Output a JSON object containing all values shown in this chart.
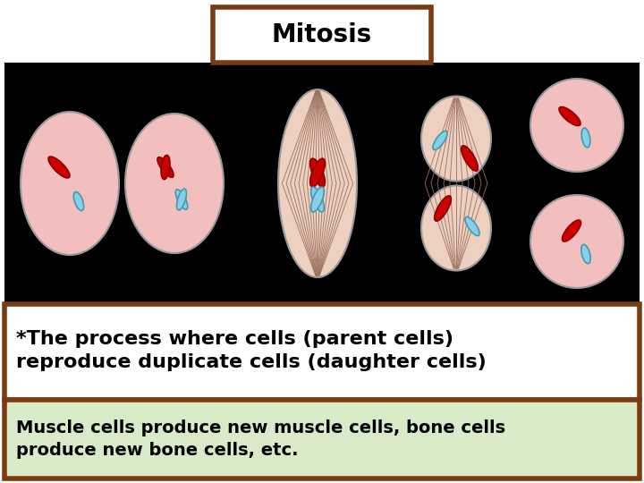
{
  "title": "Mitosis",
  "title_box_color": "#7B3A10",
  "title_bg": "#FFFFFF",
  "title_fontsize": 20,
  "bg_panel_color": "#000000",
  "cell_fill": "#F2BEBE",
  "red_chrom": "#CC0000",
  "blue_chrom": "#87CEEB",
  "text1": "*The process where cells (parent cells)\nreproduce duplicate cells (daughter cells)",
  "text2": "Muscle cells produce new muscle cells, bone cells\nproduce new bone cells, etc.",
  "text1_box_color": "#7B3A10",
  "text1_bg": "#FFFFFF",
  "text2_box_color": "#7B3A10",
  "text2_bg": "#D8EAC8",
  "text1_fontsize": 16,
  "text2_fontsize": 14,
  "spindle_line_color": "#9B7060",
  "spindle_fill": "#EDD0C0",
  "fig_width": 7.2,
  "fig_height": 5.4,
  "dpi": 100,
  "xlim": [
    0,
    720
  ],
  "ylim": [
    0,
    540
  ]
}
